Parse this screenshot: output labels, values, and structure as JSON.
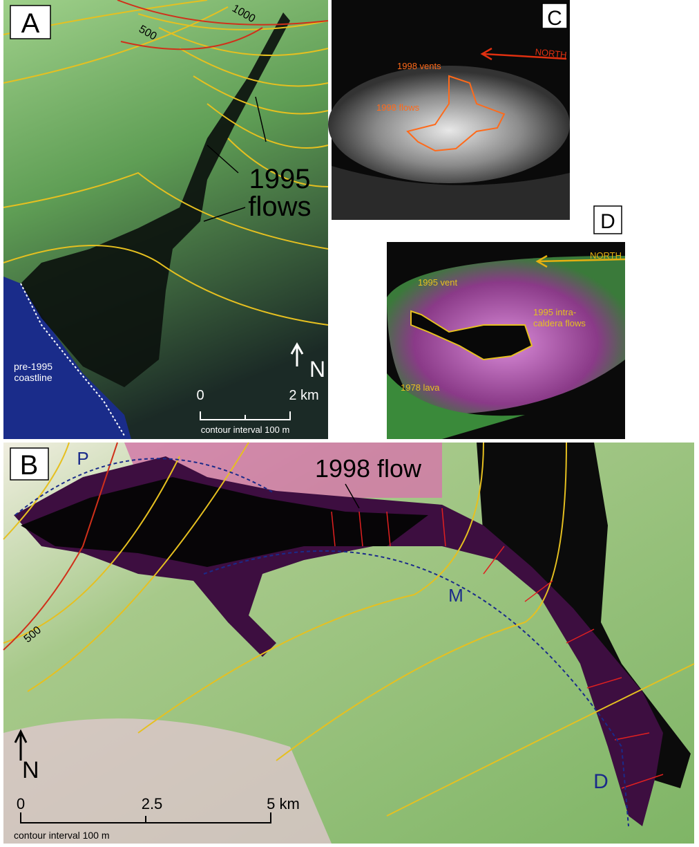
{
  "panels": {
    "A": {
      "letter": "A",
      "contour_labels": [
        "500",
        "1000"
      ],
      "flow_label": [
        "1995",
        "flows"
      ],
      "north": "N",
      "scale": [
        "0",
        "2 km"
      ],
      "contour_note": "contour interval 100 m",
      "coastline_label": [
        "pre-1995",
        "coastline"
      ]
    },
    "C": {
      "letter": "C",
      "north": "NORTH",
      "labels": [
        "1998 vents",
        "1998 flows"
      ]
    },
    "D": {
      "letter": "D",
      "north": "NORTH",
      "labels": [
        "1995 vent",
        "1995 intra-",
        "caldera flows",
        "1978 lava"
      ]
    },
    "B": {
      "letter": "B",
      "profile_labels": [
        "P",
        "M",
        "D"
      ],
      "flow_label": "1998 flow",
      "contour_label": "500",
      "north": "N",
      "scale": [
        "0",
        "2.5",
        "5 km"
      ],
      "contour_note": "contour interval 100 m"
    }
  }
}
